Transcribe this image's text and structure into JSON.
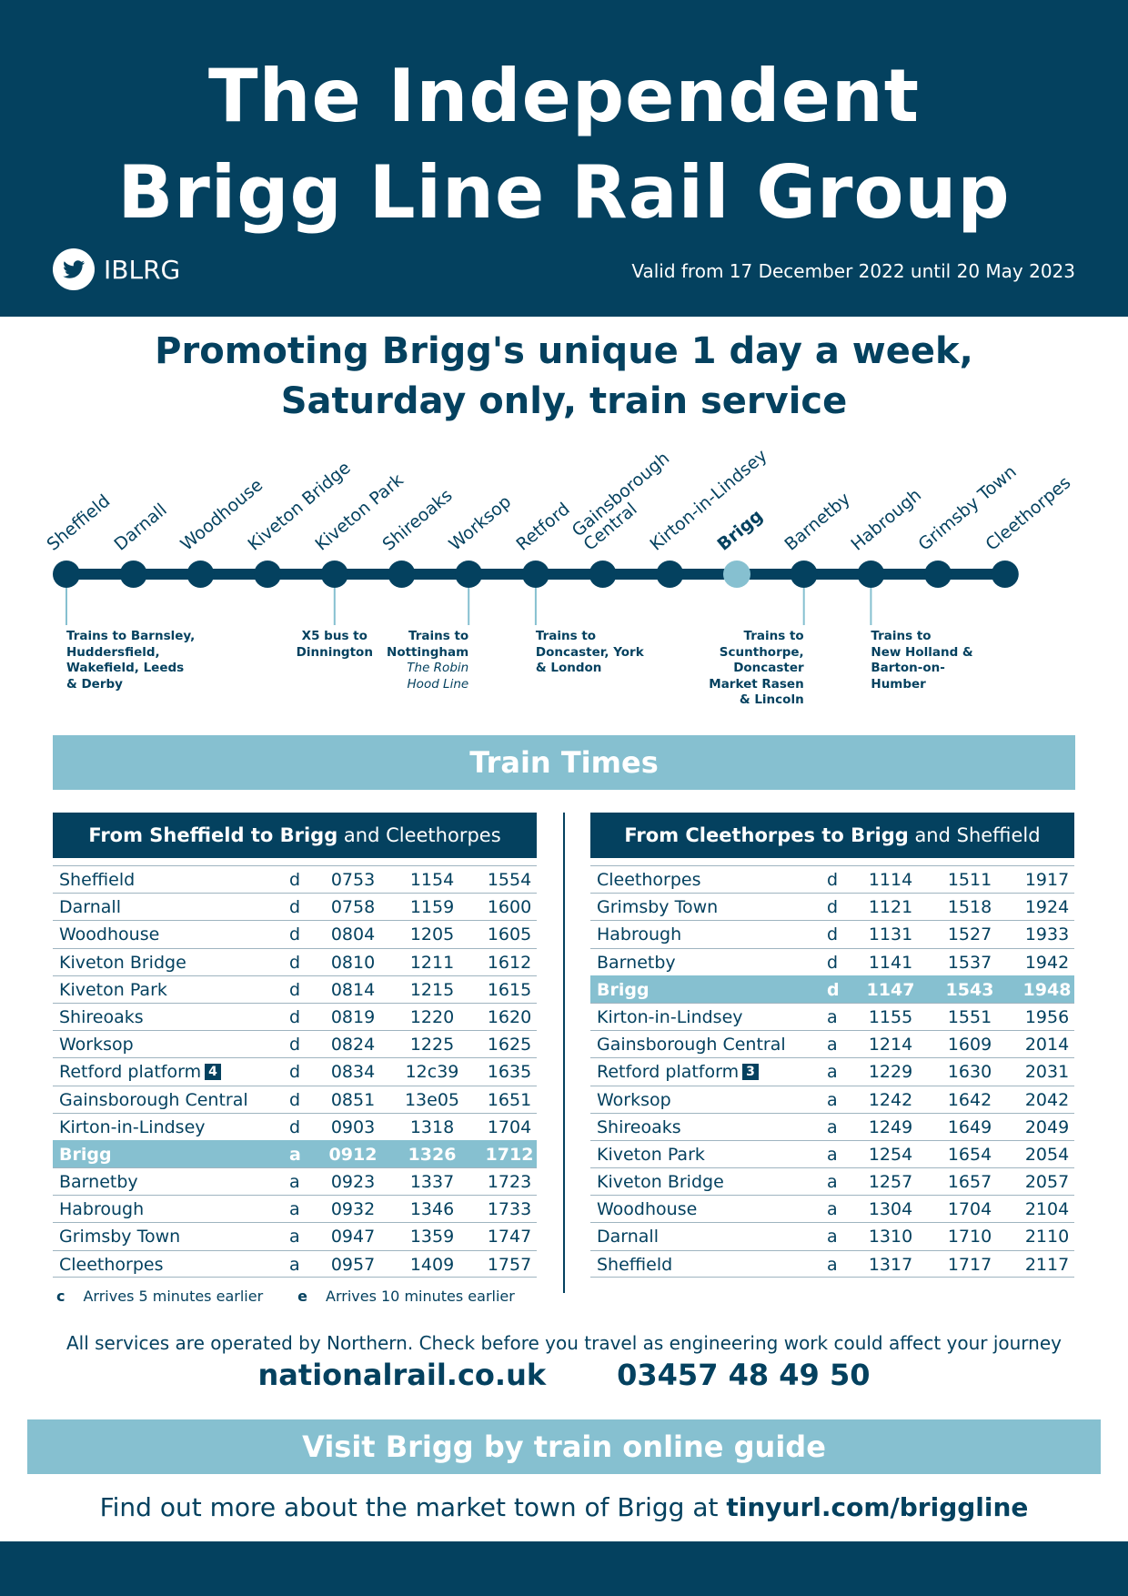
{
  "header": {
    "title_line1": "The Independent",
    "title_line2": "Brigg Line Rail Group",
    "handle": "IBLRG",
    "validity": "Valid from 17 December 2022 until 20 May 2023",
    "social_icon": "twitter-bird-icon"
  },
  "tagline": {
    "line1": "Promoting Brigg's unique 1 day a week,",
    "line2": "Saturday only, train service"
  },
  "route": {
    "stations": [
      {
        "name": "Sheffield"
      },
      {
        "name": "Darnall"
      },
      {
        "name": "Woodhouse"
      },
      {
        "name": "Kiveton Bridge"
      },
      {
        "name": "Kiveton Park"
      },
      {
        "name": "Shireoaks"
      },
      {
        "name": "Worksop"
      },
      {
        "name": "Retford"
      },
      {
        "name": "Gainsborough\nCentral"
      },
      {
        "name": "Kirton-in-Lindsey"
      },
      {
        "name": "Brigg",
        "highlight": true
      },
      {
        "name": "Barnetby"
      },
      {
        "name": "Habrough"
      },
      {
        "name": "Grimsby Town"
      },
      {
        "name": "Cleethorpes"
      }
    ],
    "connections": [
      {
        "station": "Sheffield",
        "lines": [
          "Trains to Barnsley,",
          "Huddersfield,",
          "Wakefield, Leeds",
          "& Derby"
        ]
      },
      {
        "station": "Kiveton Park",
        "lines": [
          "X5 bus to",
          "Dinnington"
        ]
      },
      {
        "station": "Worksop",
        "lines": [
          "Trains to",
          "Nottingham"
        ],
        "italic_lines": [
          "The Robin",
          "Hood Line"
        ]
      },
      {
        "station": "Retford",
        "lines": [
          "Trains to",
          "Doncaster, York",
          "& London"
        ]
      },
      {
        "station": "Barnetby",
        "lines": [
          "Trains to",
          "Scunthorpe,",
          "Doncaster",
          "Market Rasen",
          "& Lincoln"
        ]
      },
      {
        "station": "Habrough",
        "lines": [
          "Trains to",
          "New Holland &",
          "Barton-on-",
          "Humber"
        ]
      }
    ],
    "colors": {
      "line": "#04415f",
      "highlight": "#86c0d0"
    }
  },
  "train_times_heading": "Train Times",
  "southbound": {
    "heading_bold": "From Sheffield to Brigg",
    "heading_rest": " and Cleethorpes",
    "rows": [
      {
        "station": "Sheffield",
        "da": "d",
        "times": [
          "0753",
          "1154",
          "1554"
        ]
      },
      {
        "station": "Darnall",
        "da": "d",
        "times": [
          "0758",
          "1159",
          "1600"
        ]
      },
      {
        "station": "Woodhouse",
        "da": "d",
        "times": [
          "0804",
          "1205",
          "1605"
        ]
      },
      {
        "station": "Kiveton Bridge",
        "da": "d",
        "times": [
          "0810",
          "1211",
          "1612"
        ]
      },
      {
        "station": "Kiveton Park",
        "da": "d",
        "times": [
          "0814",
          "1215",
          "1615"
        ]
      },
      {
        "station": "Shireoaks",
        "da": "d",
        "times": [
          "0819",
          "1220",
          "1620"
        ]
      },
      {
        "station": "Worksop",
        "da": "d",
        "times": [
          "0824",
          "1225",
          "1625"
        ]
      },
      {
        "station": "Retford platform",
        "platform": "4",
        "da": "d",
        "times": [
          "0834",
          "12c39",
          "1635"
        ]
      },
      {
        "station": "Gainsborough Central",
        "da": "d",
        "times": [
          "0851",
          "13e05",
          "1651"
        ]
      },
      {
        "station": "Kirton-in-Lindsey",
        "da": "d",
        "times": [
          "0903",
          "1318",
          "1704"
        ]
      },
      {
        "station": "Brigg",
        "da": "a",
        "times": [
          "0912",
          "1326",
          "1712"
        ],
        "highlight": true
      },
      {
        "station": "Barnetby",
        "da": "a",
        "times": [
          "0923",
          "1337",
          "1723"
        ]
      },
      {
        "station": "Habrough",
        "da": "a",
        "times": [
          "0932",
          "1346",
          "1733"
        ]
      },
      {
        "station": "Grimsby Town",
        "da": "a",
        "times": [
          "0947",
          "1359",
          "1747"
        ]
      },
      {
        "station": "Cleethorpes",
        "da": "a",
        "times": [
          "0957",
          "1409",
          "1757"
        ]
      }
    ],
    "notes": [
      {
        "key": "c",
        "text": "Arrives 5 minutes earlier"
      },
      {
        "key": "e",
        "text": "Arrives 10 minutes earlier"
      }
    ]
  },
  "northbound": {
    "heading_bold": "From Cleethorpes to Brigg",
    "heading_rest": " and Sheffield",
    "rows": [
      {
        "station": "Cleethorpes",
        "da": "d",
        "times": [
          "1114",
          "1511",
          "1917"
        ]
      },
      {
        "station": "Grimsby Town",
        "da": "d",
        "times": [
          "1121",
          "1518",
          "1924"
        ]
      },
      {
        "station": "Habrough",
        "da": "d",
        "times": [
          "1131",
          "1527",
          "1933"
        ]
      },
      {
        "station": "Barnetby",
        "da": "d",
        "times": [
          "1141",
          "1537",
          "1942"
        ]
      },
      {
        "station": "Brigg",
        "da": "d",
        "times": [
          "1147",
          "1543",
          "1948"
        ],
        "highlight": true
      },
      {
        "station": "Kirton-in-Lindsey",
        "da": "a",
        "times": [
          "1155",
          "1551",
          "1956"
        ]
      },
      {
        "station": "Gainsborough Central",
        "da": "a",
        "times": [
          "1214",
          "1609",
          "2014"
        ]
      },
      {
        "station": "Retford platform",
        "platform": "3",
        "da": "a",
        "times": [
          "1229",
          "1630",
          "2031"
        ]
      },
      {
        "station": "Worksop",
        "da": "a",
        "times": [
          "1242",
          "1642",
          "2042"
        ]
      },
      {
        "station": "Shireoaks",
        "da": "a",
        "times": [
          "1249",
          "1649",
          "2049"
        ]
      },
      {
        "station": "Kiveton Park",
        "da": "a",
        "times": [
          "1254",
          "1654",
          "2054"
        ]
      },
      {
        "station": "Kiveton Bridge",
        "da": "a",
        "times": [
          "1257",
          "1657",
          "2057"
        ]
      },
      {
        "station": "Woodhouse",
        "da": "a",
        "times": [
          "1304",
          "1704",
          "2104"
        ]
      },
      {
        "station": "Darnall",
        "da": "a",
        "times": [
          "1310",
          "1710",
          "2110"
        ]
      },
      {
        "station": "Sheffield",
        "da": "a",
        "times": [
          "1317",
          "1717",
          "2117"
        ]
      }
    ]
  },
  "footer": {
    "operator_note": "All services are operated by Northern. Check before you travel as engineering work could affect your journey",
    "website": "nationalrail.co.uk",
    "phone": "03457 48 49 50",
    "visit_heading": "Visit Brigg by train online guide",
    "findout_text": "Find out more about the market town of Brigg at ",
    "findout_link": "tinyurl.com/briggline"
  },
  "colors": {
    "navy": "#04415f",
    "light_blue": "#86c0d0",
    "white": "#ffffff"
  }
}
